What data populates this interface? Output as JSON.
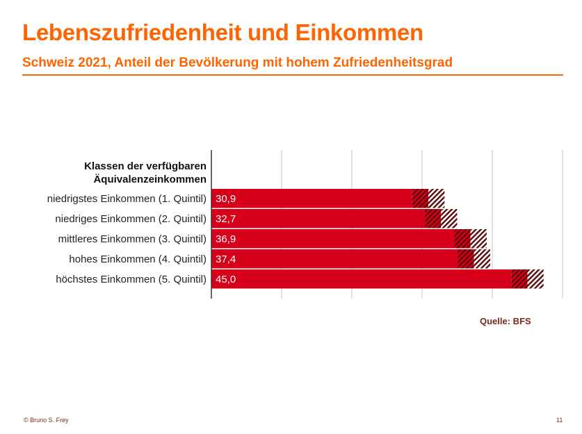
{
  "header": {
    "title": "Lebenszufriedenheit und Einkommen",
    "subtitle": "Schweiz 2021, Anteil der Bevölkerung mit hohem Zufriedenheitsgrad"
  },
  "colors": {
    "accent": "#ff6400",
    "bar": "#d7001b",
    "hatch_dark": "#5a0a0a",
    "grid": "#d0d0d0",
    "source": "#7a2a1e"
  },
  "chart_data": {
    "type": "bar",
    "orientation": "horizontal",
    "category_header": [
      "Klassen der verfügbaren",
      "Äquivalenzeinkommen"
    ],
    "categories": [
      "niedrigstes Einkommen (1. Quintil)",
      "niedriges Einkommen (2. Quintil)",
      "mittleres Einkommen (3. Quintil)",
      "hohes Einkommen (4. Quintil)",
      "höchstes Einkommen (5. Quintil)"
    ],
    "values": [
      30.9,
      32.7,
      36.9,
      37.4,
      45.0
    ],
    "value_labels": [
      "30,9",
      "32,7",
      "36,9",
      "37,4",
      "45,0"
    ],
    "confidence_interval": 2.3,
    "xlim": [
      0,
      50
    ],
    "grid_step": 10,
    "grid": true,
    "xlabel": "",
    "ylabel": ""
  },
  "source": "Quelle: BFS",
  "footer": {
    "copyright": "© Bruno S. Frey",
    "page_number": "11"
  }
}
